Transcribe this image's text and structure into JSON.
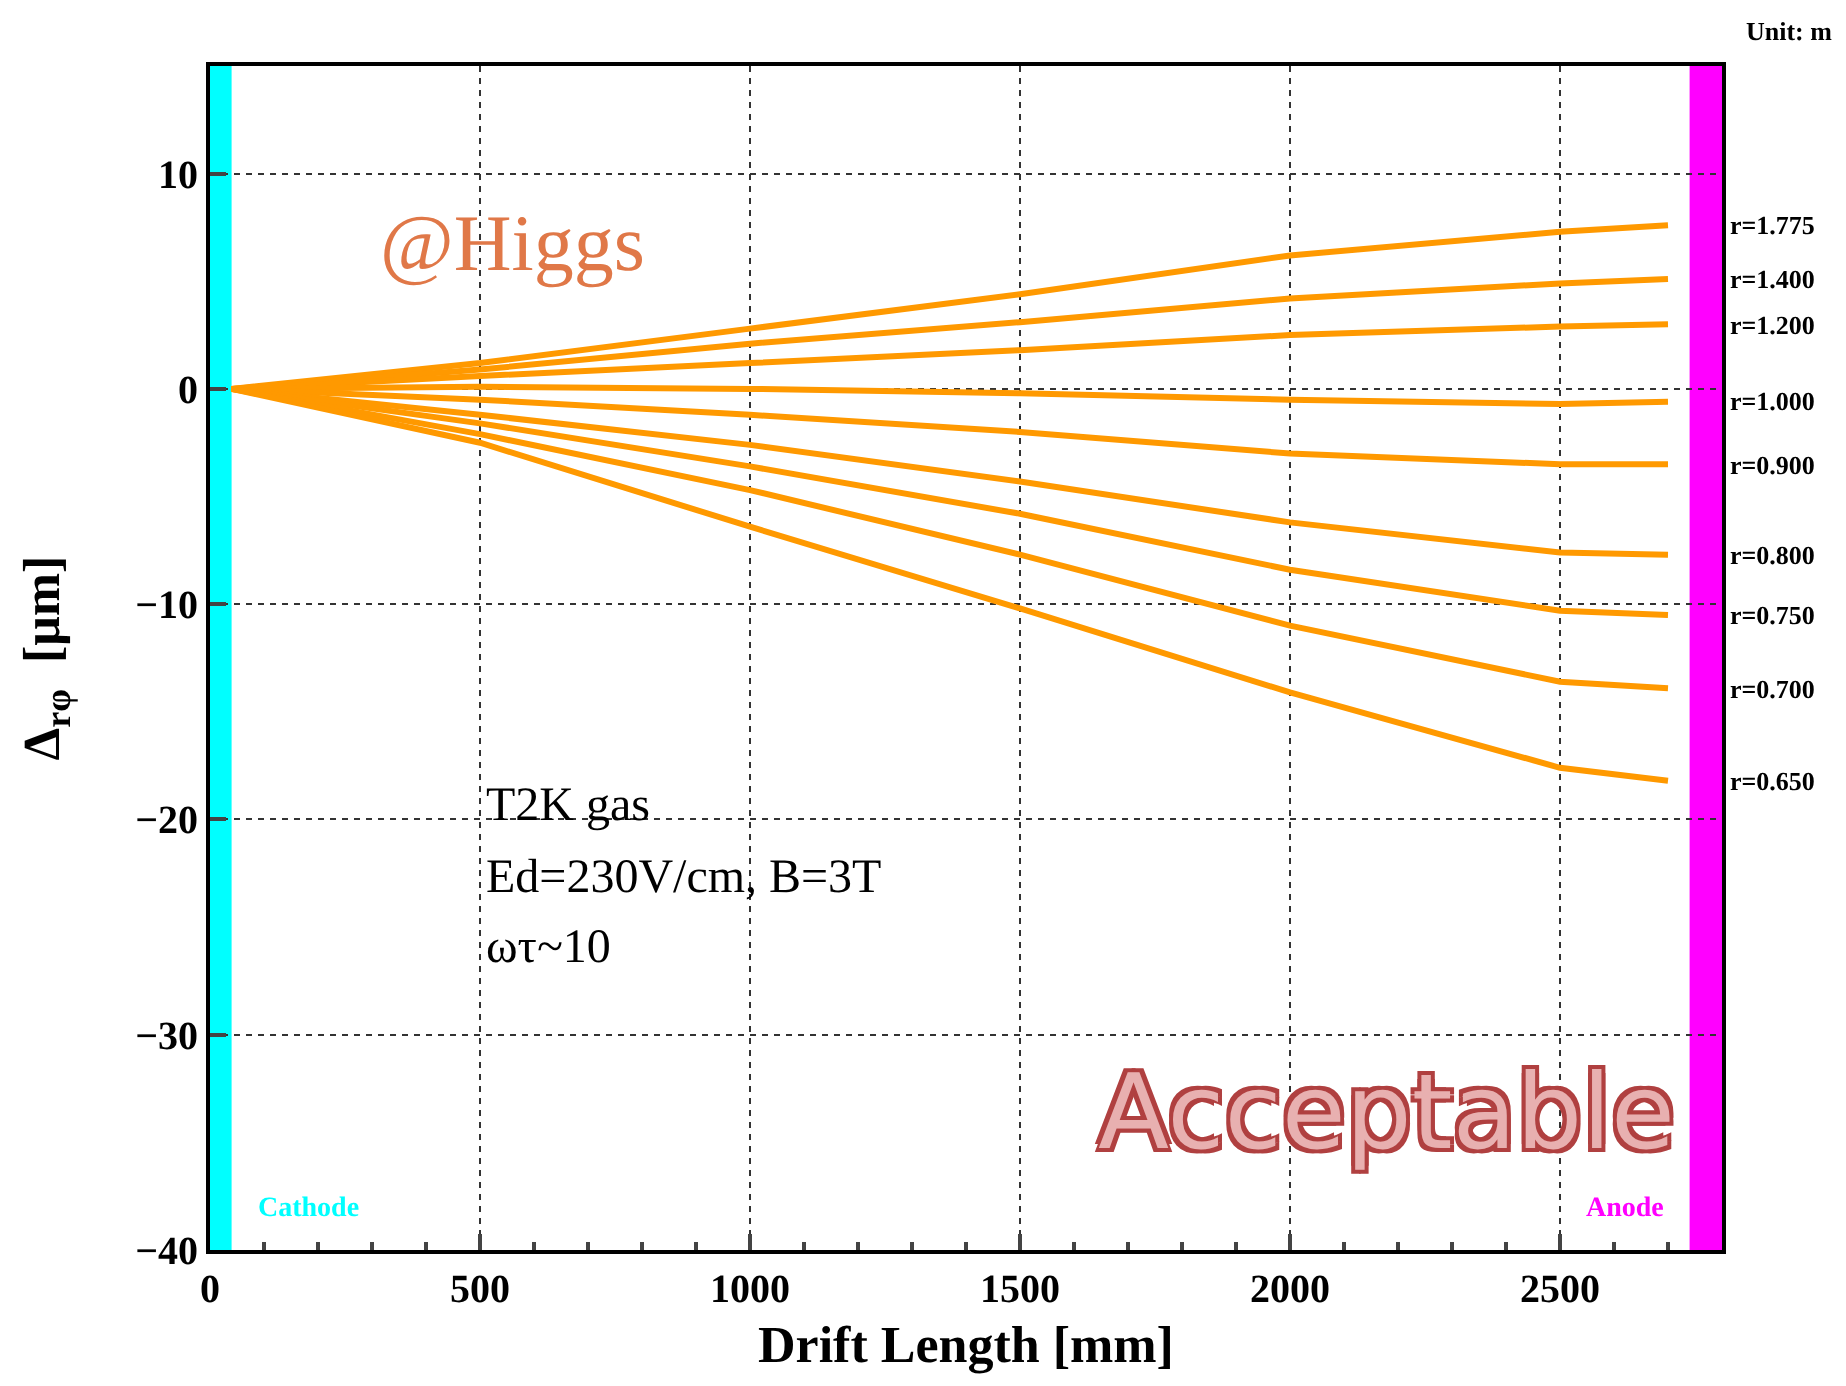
{
  "chart_data": {
    "type": "line",
    "xlabel": "Drift Length [mm]",
    "ylabel": "Δ$_{rφ}$  [μm]",
    "x": [
      40,
      500,
      1000,
      1500,
      2000,
      2500,
      2700
    ],
    "xlim": [
      0,
      2800
    ],
    "xticks": [
      0,
      500,
      1000,
      1500,
      2000,
      2500
    ],
    "ylim": [
      -40,
      15
    ],
    "yticks": [
      -40,
      -30,
      -20,
      -10,
      0,
      10
    ],
    "grid": true,
    "legend": false,
    "marker": "none",
    "line_style": "solid",
    "series": [
      {
        "name": "r=1.775",
        "color": "#ff9900",
        "values": [
          0,
          1.2,
          2.8,
          4.4,
          6.2,
          7.3,
          7.6
        ]
      },
      {
        "name": "r=1.400",
        "color": "#ff9900",
        "values": [
          0,
          0.9,
          2.1,
          3.1,
          4.2,
          4.9,
          5.1
        ]
      },
      {
        "name": "r=1.200",
        "color": "#ff9900",
        "values": [
          0,
          0.6,
          1.2,
          1.8,
          2.5,
          2.9,
          3.0
        ]
      },
      {
        "name": "r=1.000",
        "color": "#ff9900",
        "values": [
          0,
          0.1,
          0,
          -0.2,
          -0.5,
          -0.7,
          -0.6
        ]
      },
      {
        "name": "r=0.900",
        "color": "#ff9900",
        "values": [
          0,
          -0.5,
          -1.2,
          -2.0,
          -3.0,
          -3.5,
          -3.5
        ]
      },
      {
        "name": "r=0.800",
        "color": "#ff9900",
        "values": [
          0,
          -1.2,
          -2.6,
          -4.3,
          -6.2,
          -7.6,
          -7.7
        ]
      },
      {
        "name": "r=0.750",
        "color": "#ff9900",
        "values": [
          0,
          -1.6,
          -3.6,
          -5.8,
          -8.4,
          -10.3,
          -10.5
        ]
      },
      {
        "name": "r=0.700",
        "color": "#ff9900",
        "values": [
          0,
          -2.1,
          -4.7,
          -7.7,
          -11.0,
          -13.6,
          -13.9
        ]
      },
      {
        "name": "r=0.650",
        "color": "#ff9900",
        "values": [
          0,
          -2.5,
          -6.4,
          -10.2,
          -14.1,
          -17.6,
          -18.2
        ]
      }
    ],
    "bands": [
      {
        "axis": "x",
        "from": 0,
        "to": 40,
        "label": "Cathode",
        "color": "#00ffff"
      },
      {
        "axis": "x",
        "from": 2740,
        "to": 2800,
        "label": "Anode",
        "color": "#ff00ff"
      }
    ],
    "annotations": [
      "@Higgs",
      "T2K gas",
      "Ed=230V/cm, B=3T",
      "ωτ~10",
      "Acceptable",
      "Unit: m"
    ]
  }
}
